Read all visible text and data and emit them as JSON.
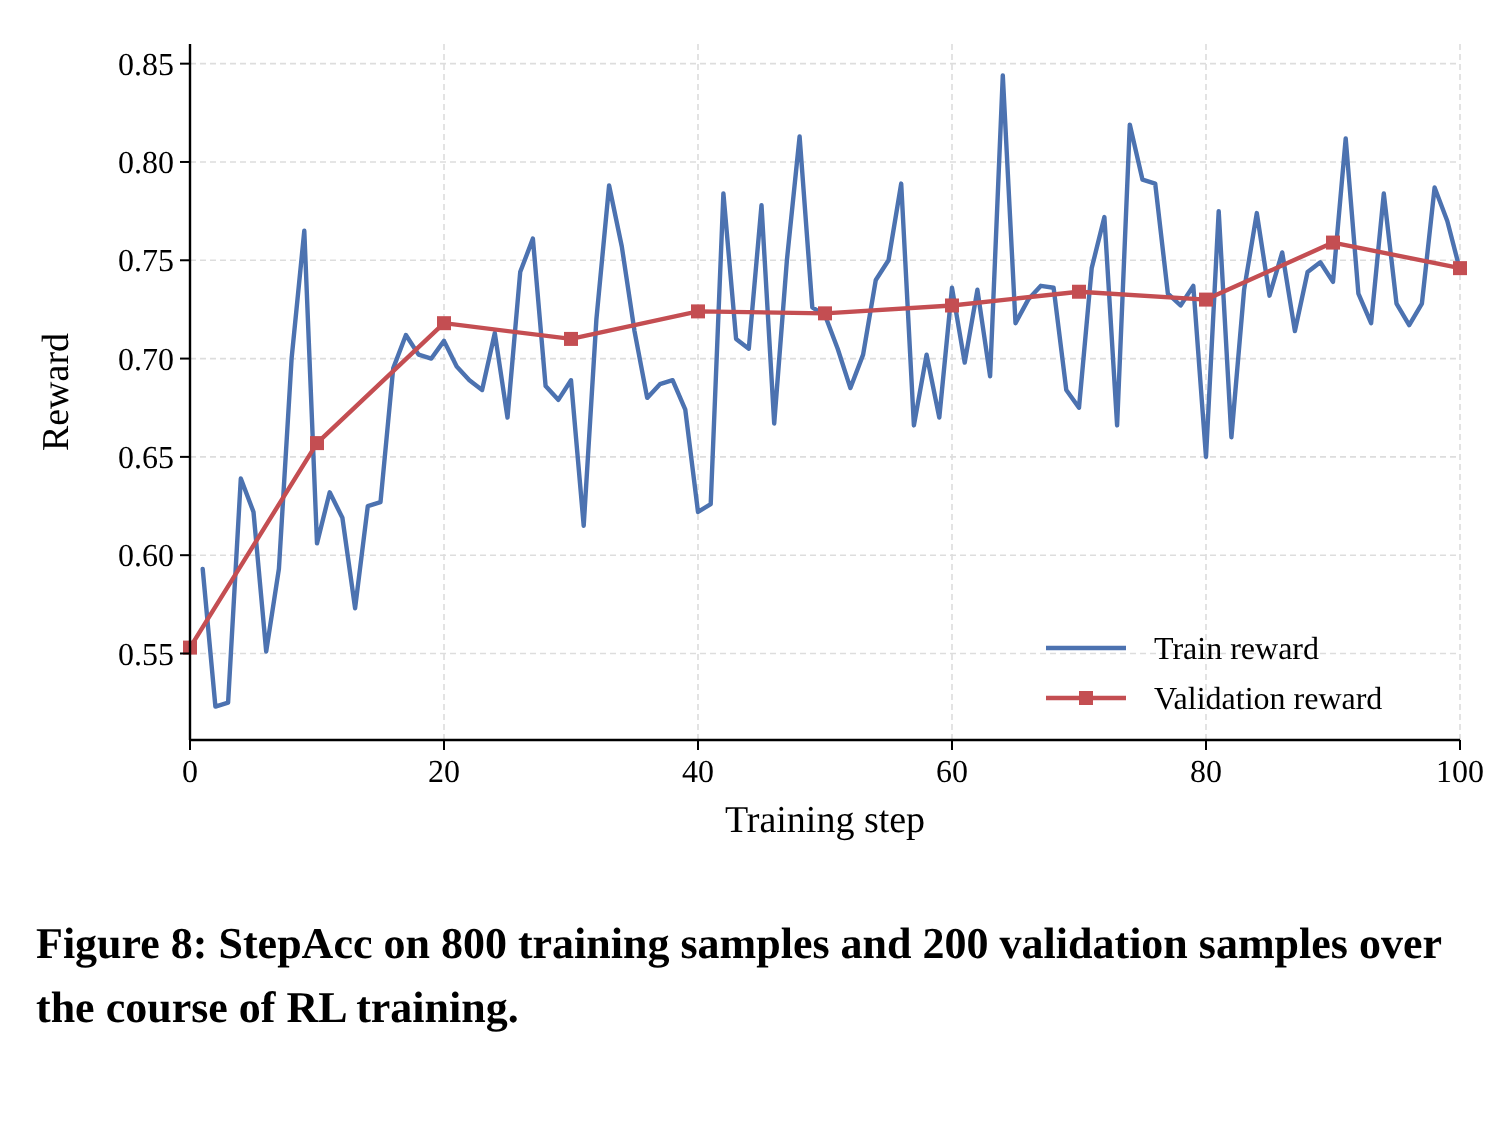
{
  "chart_data": {
    "type": "line",
    "xlabel": "Training step",
    "ylabel": "Reward",
    "xlim": [
      0,
      100
    ],
    "xticks": [
      0,
      20,
      40,
      60,
      80,
      100
    ],
    "ylim": [
      0.506,
      0.86
    ],
    "yticks": [
      {
        "value": 0.55,
        "label": "0.55"
      },
      {
        "value": 0.6,
        "label": "0.60"
      },
      {
        "value": 0.65,
        "label": "0.65"
      },
      {
        "value": 0.7,
        "label": "0.70"
      },
      {
        "value": 0.75,
        "label": "0.75"
      },
      {
        "value": 0.8,
        "label": "0.80"
      },
      {
        "value": 0.85,
        "label": "0.85"
      }
    ],
    "grid": true,
    "legend": "bottom right",
    "series": [
      {
        "name": "Train reward",
        "color": "#4c72b0",
        "marker": "none",
        "x": [
          1,
          2,
          3,
          4,
          5,
          6,
          7,
          8,
          9,
          10,
          11,
          12,
          13,
          14,
          15,
          16,
          17,
          18,
          19,
          20,
          21,
          22,
          23,
          24,
          25,
          26,
          27,
          28,
          29,
          30,
          31,
          32,
          33,
          34,
          35,
          36,
          37,
          38,
          39,
          40,
          41,
          42,
          43,
          44,
          45,
          46,
          47,
          48,
          49,
          50,
          51,
          52,
          53,
          54,
          55,
          56,
          57,
          58,
          59,
          60,
          61,
          62,
          63,
          64,
          65,
          66,
          67,
          68,
          69,
          70,
          71,
          72,
          73,
          74,
          75,
          76,
          77,
          78,
          79,
          80,
          81,
          82,
          83,
          84,
          85,
          86,
          87,
          88,
          89,
          90,
          91,
          92,
          93,
          94,
          95,
          96,
          97,
          98,
          99,
          100
        ],
        "values": [
          0.593,
          0.523,
          0.525,
          0.639,
          0.622,
          0.551,
          0.593,
          0.7,
          0.765,
          0.606,
          0.632,
          0.619,
          0.573,
          0.625,
          0.627,
          0.695,
          0.712,
          0.702,
          0.7,
          0.709,
          0.696,
          0.689,
          0.684,
          0.713,
          0.67,
          0.744,
          0.761,
          0.686,
          0.679,
          0.689,
          0.615,
          0.72,
          0.788,
          0.757,
          0.714,
          0.68,
          0.687,
          0.689,
          0.674,
          0.622,
          0.626,
          0.784,
          0.71,
          0.705,
          0.778,
          0.667,
          0.75,
          0.813,
          0.726,
          0.722,
          0.705,
          0.685,
          0.702,
          0.74,
          0.75,
          0.789,
          0.666,
          0.702,
          0.67,
          0.736,
          0.698,
          0.735,
          0.691,
          0.844,
          0.718,
          0.73,
          0.737,
          0.736,
          0.684,
          0.675,
          0.746,
          0.772,
          0.666,
          0.819,
          0.791,
          0.789,
          0.733,
          0.727,
          0.737,
          0.65,
          0.775,
          0.66,
          0.735,
          0.774,
          0.732,
          0.754,
          0.714,
          0.744,
          0.749,
          0.739,
          0.812,
          0.733,
          0.718,
          0.784,
          0.728,
          0.717,
          0.728,
          0.787,
          0.77,
          0.745
        ]
      },
      {
        "name": "Validation reward",
        "color": "#c44e52",
        "marker": "square",
        "x": [
          0,
          10,
          20,
          30,
          40,
          50,
          60,
          70,
          80,
          90,
          100
        ],
        "values": [
          0.553,
          0.657,
          0.718,
          0.71,
          0.724,
          0.723,
          0.727,
          0.734,
          0.73,
          0.759,
          0.746
        ]
      }
    ],
    "annotations": [
      "Figure 8: StepAcc on 800 training samples and 200 validation samples over the course of RL training."
    ]
  }
}
